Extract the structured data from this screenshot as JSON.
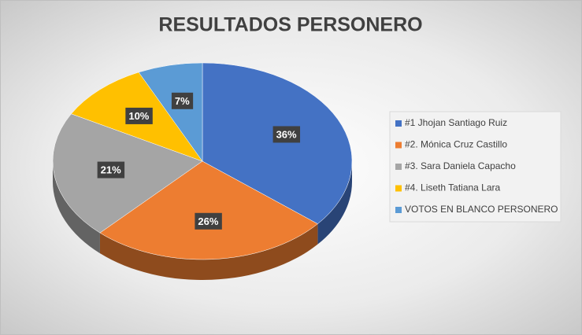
{
  "chart_data": {
    "type": "pie",
    "title": "RESULTADOS PERSONERO",
    "categories": [
      "#1 Jhojan Santiago Ruiz",
      "#2. Mónica Cruz Castillo",
      "#3. Sara Daniela Capacho",
      "#4. Liseth Tatiana Lara",
      "VOTOS EN BLANCO PERSONERO"
    ],
    "values": [
      36,
      26,
      21,
      10,
      7
    ],
    "value_labels": [
      "36%",
      "26%",
      "21%",
      "10%",
      "7%"
    ],
    "colors": [
      "#4472c4",
      "#ed7d31",
      "#a5a5a5",
      "#ffc000",
      "#5b9bd5"
    ],
    "legend": "right"
  }
}
